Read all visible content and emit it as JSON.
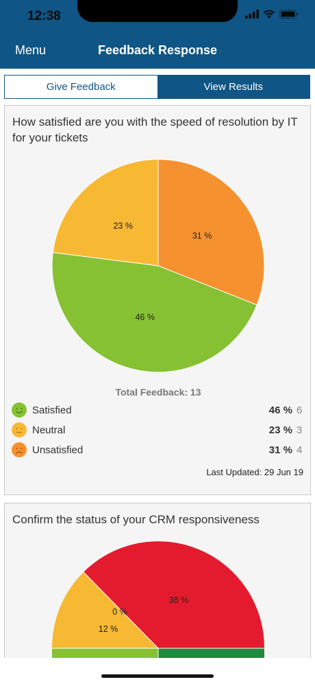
{
  "status": {
    "time": "12:38"
  },
  "nav": {
    "menu_label": "Menu",
    "title": "Feedback Response"
  },
  "tabs": [
    {
      "label": "Give Feedback",
      "active": true
    },
    {
      "label": "View Results",
      "active": false
    }
  ],
  "question1": {
    "title": "How satisfied are you with the speed of resolution by IT for your tickets",
    "chart_data": {
      "type": "pie",
      "slices": [
        {
          "name": "Satisfied",
          "percent": 46,
          "label": "46 %",
          "color": "#86c133"
        },
        {
          "name": "Neutral",
          "percent": 23,
          "label": "23 %",
          "color": "#f7b934"
        },
        {
          "name": "Unsatisfied",
          "percent": 31,
          "label": "31 %",
          "color": "#f5922f"
        }
      ]
    },
    "total_text": "Total Feedback: 13",
    "legend": [
      {
        "label": "Satisfied",
        "percent": "46 %",
        "count": "6",
        "color": "#86c133",
        "icon": "smile-icon"
      },
      {
        "label": "Neutral",
        "percent": "23 %",
        "count": "3",
        "color": "#f7b934",
        "icon": "neutral-face-icon"
      },
      {
        "label": "Unsatisfied",
        "percent": "31 %",
        "count": "4",
        "color": "#f5922f",
        "icon": "frown-icon"
      }
    ],
    "last_updated": "Last Updated: 29 Jun 19"
  },
  "question2": {
    "title": "Confirm the status of your CRM responsiveness",
    "chart_data": {
      "type": "pie",
      "slice_labels": [
        "38 %",
        "12 %",
        "0 %"
      ],
      "colors": {
        "red": "#e41b2e",
        "yellow": "#f7b934",
        "green_light": "#86c133",
        "green_dark": "#1e8a3e"
      }
    }
  }
}
